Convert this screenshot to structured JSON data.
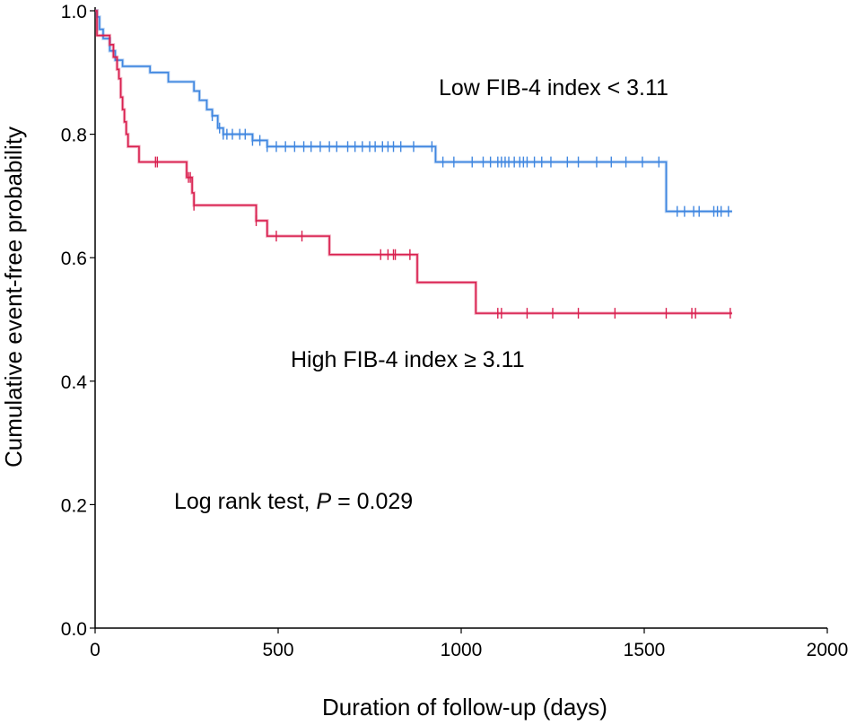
{
  "chart_data": {
    "type": "line",
    "title": "",
    "xlabel": "Duration of follow-up (days)",
    "ylabel": "Cumulative event-free probability",
    "xlim": [
      0,
      2000
    ],
    "ylim": [
      0,
      1.0
    ],
    "xticks": [
      0,
      500,
      1000,
      1500,
      2000
    ],
    "yticks": [
      0.0,
      0.2,
      0.4,
      0.6,
      0.8,
      1.0
    ],
    "xtick_labels": [
      "0",
      "500",
      "1000",
      "1500",
      "2000"
    ],
    "ytick_labels": [
      "0.0",
      "0.2",
      "0.4",
      "0.6",
      "0.8",
      "1.0"
    ],
    "grid": false,
    "series": [
      {
        "name": "Low FIB-4 index < 3.11",
        "color": "#3f86e0",
        "steps": [
          [
            0,
            1.0
          ],
          [
            5,
            0.99
          ],
          [
            12,
            0.97
          ],
          [
            22,
            0.955
          ],
          [
            40,
            0.935
          ],
          [
            55,
            0.92
          ],
          [
            75,
            0.91
          ],
          [
            150,
            0.9
          ],
          [
            200,
            0.885
          ],
          [
            270,
            0.87
          ],
          [
            285,
            0.855
          ],
          [
            305,
            0.84
          ],
          [
            320,
            0.83
          ],
          [
            335,
            0.81
          ],
          [
            350,
            0.8
          ],
          [
            430,
            0.79
          ],
          [
            470,
            0.78
          ],
          [
            930,
            0.755
          ],
          [
            1560,
            0.675
          ],
          [
            1740,
            0.675
          ]
        ],
        "censored": [
          320,
          340,
          350,
          360,
          375,
          395,
          410,
          430,
          450,
          470,
          495,
          520,
          545,
          570,
          590,
          615,
          640,
          660,
          690,
          710,
          730,
          750,
          765,
          785,
          800,
          815,
          835,
          870,
          920,
          950,
          980,
          1030,
          1060,
          1080,
          1100,
          1110,
          1120,
          1130,
          1145,
          1160,
          1170,
          1180,
          1200,
          1220,
          1245,
          1290,
          1320,
          1370,
          1410,
          1450,
          1495,
          1540,
          1590,
          1610,
          1635,
          1650,
          1690,
          1700,
          1710,
          1730
        ]
      },
      {
        "name": "High FIB-4 index ≥ 3.11",
        "color": "#d9204f",
        "steps": [
          [
            0,
            1.0
          ],
          [
            5,
            0.96
          ],
          [
            40,
            0.945
          ],
          [
            50,
            0.925
          ],
          [
            60,
            0.905
          ],
          [
            65,
            0.89
          ],
          [
            70,
            0.86
          ],
          [
            75,
            0.84
          ],
          [
            80,
            0.82
          ],
          [
            85,
            0.8
          ],
          [
            90,
            0.78
          ],
          [
            120,
            0.755
          ],
          [
            250,
            0.73
          ],
          [
            265,
            0.705
          ],
          [
            270,
            0.685
          ],
          [
            440,
            0.66
          ],
          [
            470,
            0.635
          ],
          [
            640,
            0.605
          ],
          [
            880,
            0.56
          ],
          [
            1040,
            0.51
          ],
          [
            1740,
            0.51
          ]
        ],
        "censored": [
          165,
          170,
          255,
          260,
          270,
          440,
          495,
          565,
          780,
          800,
          815,
          820,
          860,
          1100,
          1110,
          1180,
          1250,
          1320,
          1420,
          1560,
          1630,
          1640,
          1735
        ]
      }
    ],
    "annotations": {
      "low_label": "Low FIB-4 index < 3.11",
      "high_label": "High FIB-4 index ≥ 3.11",
      "logrank_prefix": "Log rank test, ",
      "logrank_italic": "P",
      "logrank_suffix": " = 0.029"
    }
  }
}
